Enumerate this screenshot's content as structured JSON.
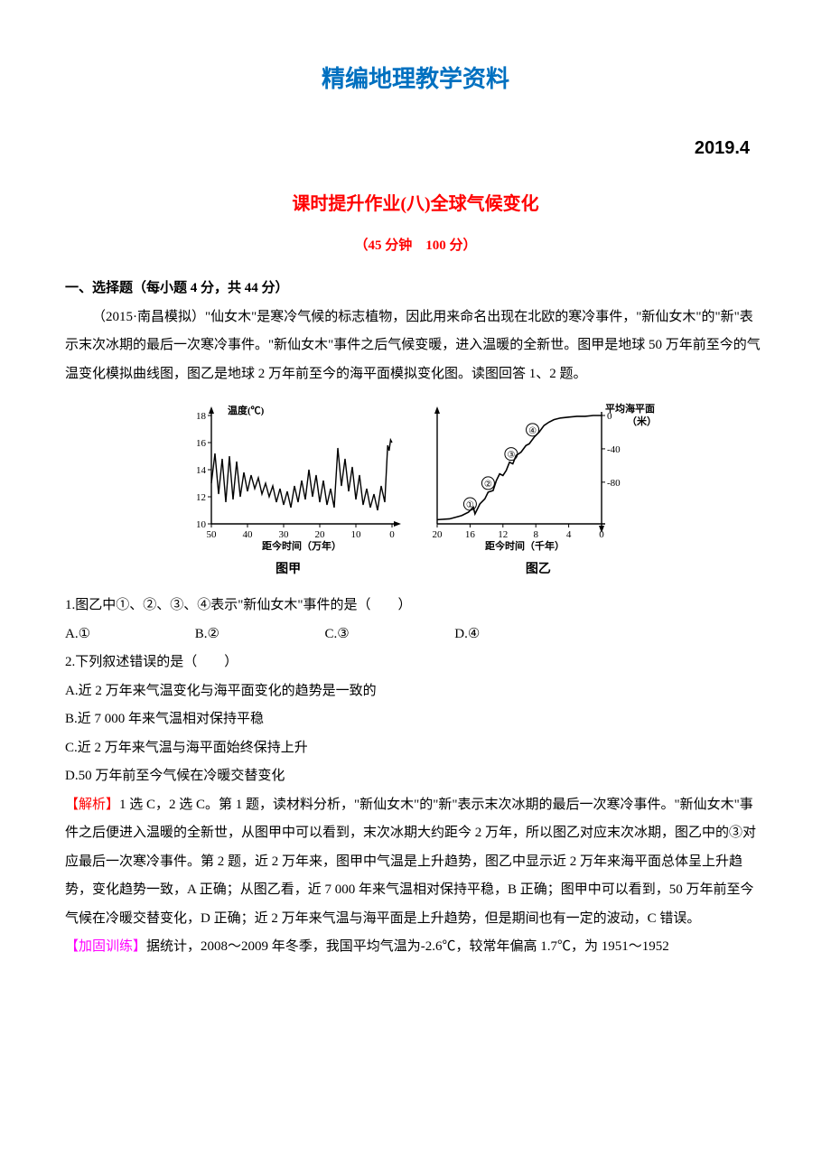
{
  "header": {
    "main_title": "精编地理教学资料",
    "date": "2019.4",
    "sub_title": "课时提升作业(八)全球气候变化",
    "time_line": "（45 分钟　100 分）"
  },
  "section1": {
    "heading": "一、选择题（每小题 4 分，共 44 分）",
    "intro": "（2015·南昌模拟）\"仙女木\"是寒冷气候的标志植物，因此用来命名出现在北欧的寒冷事件，\"新仙女木\"的\"新\"表示末次冰期的最后一次寒冷事件。\"新仙女木\"事件之后气候变暖，进入温暖的全新世。图甲是地球 50 万年前至今的气温变化模拟曲线图，图乙是地球 2 万年前至今的海平面模拟变化图。读图回答 1、2 题。"
  },
  "chart_jia": {
    "caption": "图甲",
    "y_label": "温度(℃)",
    "x_label": "距今时间（万年）",
    "x_ticks": [
      50,
      40,
      30,
      20,
      10,
      0
    ],
    "y_ticks": [
      10,
      12,
      14,
      16,
      18
    ],
    "xlim": [
      50,
      0
    ],
    "ylim": [
      10,
      18
    ],
    "axis_color": "#000000",
    "line_color": "#000000",
    "line_width": 1.4,
    "background": "#ffffff",
    "font_size": 11,
    "data_points": [
      [
        50,
        13.0
      ],
      [
        49,
        15.2
      ],
      [
        48,
        12.2
      ],
      [
        47,
        14.8
      ],
      [
        46,
        11.6
      ],
      [
        45,
        15.0
      ],
      [
        44,
        11.8
      ],
      [
        43,
        14.6
      ],
      [
        42,
        12.0
      ],
      [
        41,
        13.8
      ],
      [
        40,
        12.4
      ],
      [
        39,
        13.6
      ],
      [
        38,
        12.6
      ],
      [
        37,
        13.4
      ],
      [
        36,
        12.2
      ],
      [
        35,
        13.0
      ],
      [
        34,
        12.0
      ],
      [
        33,
        12.8
      ],
      [
        32,
        11.6
      ],
      [
        31,
        12.6
      ],
      [
        30,
        11.4
      ],
      [
        29,
        12.4
      ],
      [
        28,
        11.2
      ],
      [
        27,
        12.8
      ],
      [
        26,
        11.6
      ],
      [
        25,
        13.2
      ],
      [
        24,
        11.8
      ],
      [
        23,
        14.0
      ],
      [
        22,
        12.0
      ],
      [
        21,
        13.6
      ],
      [
        20,
        11.6
      ],
      [
        19,
        13.2
      ],
      [
        18,
        11.4
      ],
      [
        17,
        12.6
      ],
      [
        16,
        11.2
      ],
      [
        15,
        15.6
      ],
      [
        14,
        12.8
      ],
      [
        13,
        14.8
      ],
      [
        12,
        12.4
      ],
      [
        11,
        14.2
      ],
      [
        10,
        11.8
      ],
      [
        9,
        13.6
      ],
      [
        8,
        11.4
      ],
      [
        7,
        12.6
      ],
      [
        6,
        11.2
      ],
      [
        5,
        12.2
      ],
      [
        4,
        11.0
      ],
      [
        3,
        12.8
      ],
      [
        2,
        11.6
      ],
      [
        1.2,
        15.8
      ],
      [
        0.8,
        15.4
      ],
      [
        0.4,
        16.2
      ],
      [
        0,
        16.0
      ]
    ]
  },
  "chart_yi": {
    "caption": "图乙",
    "left_y_label": "",
    "right_y_label": "平均海平面（米）",
    "x_label": "距今时间（千年）",
    "x_ticks": [
      20,
      16,
      12,
      8,
      4,
      0
    ],
    "right_y_ticks": [
      0,
      -40,
      -80
    ],
    "xlim": [
      20,
      0
    ],
    "ylim_right": [
      -130,
      0
    ],
    "axis_color": "#000000",
    "line_color": "#000000",
    "line_width": 1.6,
    "background": "#ffffff",
    "font_size": 11,
    "data_points": [
      [
        20,
        -125
      ],
      [
        18.5,
        -124
      ],
      [
        17,
        -120
      ],
      [
        16.2,
        -116
      ],
      [
        15.6,
        -110
      ],
      [
        15.4,
        -118
      ],
      [
        14.8,
        -106
      ],
      [
        14.2,
        -100
      ],
      [
        13.8,
        -92
      ],
      [
        13.2,
        -90
      ],
      [
        12.8,
        -78
      ],
      [
        12.4,
        -70
      ],
      [
        12.0,
        -72
      ],
      [
        11.6,
        -66
      ],
      [
        11.2,
        -56
      ],
      [
        10.8,
        -58
      ],
      [
        10.4,
        -48
      ],
      [
        9.8,
        -44
      ],
      [
        9.2,
        -36
      ],
      [
        8.8,
        -34
      ],
      [
        8.2,
        -26
      ],
      [
        7.6,
        -20
      ],
      [
        7.0,
        -12
      ],
      [
        6.4,
        -8
      ],
      [
        5.8,
        -5
      ],
      [
        5.0,
        -3
      ],
      [
        4.0,
        -2
      ],
      [
        3.0,
        -1
      ],
      [
        2.0,
        -1
      ],
      [
        1.0,
        0
      ],
      [
        0,
        0
      ]
    ],
    "markers": [
      {
        "num": "①",
        "x": 16.0,
        "y": -117
      },
      {
        "num": "②",
        "x": 13.8,
        "y": -92
      },
      {
        "num": "③",
        "x": 11.0,
        "y": -57
      },
      {
        "num": "④",
        "x": 8.4,
        "y": -28
      }
    ]
  },
  "q1": {
    "stem": "1.图乙中①、②、③、④表示\"新仙女木\"事件的是（　　）",
    "A": "A.①",
    "B": "B.②",
    "C": "C.③",
    "D": "D.④"
  },
  "q2": {
    "stem": "2.下列叙述错误的是（　　）",
    "A": "A.近 2 万年来气温变化与海平面变化的趋势是一致的",
    "B": "B.近 7 000 年来气温相对保持平稳",
    "C": "C.近 2 万年来气温与海平面始终保持上升",
    "D": "D.50 万年前至今气候在冷暖交替变化"
  },
  "analysis": {
    "label": "【解析】",
    "body": "1 选 C，2 选 C。第 1 题，读材料分析，\"新仙女木\"的\"新\"表示末次冰期的最后一次寒冷事件。\"新仙女木\"事件之后便进入温暖的全新世，从图甲中可以看到，末次冰期大约距今 2 万年，所以图乙对应末次冰期，图乙中的③对应最后一次寒冷事件。第 2 题，近 2 万年来，图甲中气温是上升趋势，图乙中显示近 2 万年来海平面总体呈上升趋势，变化趋势一致，A 正确；从图乙看，近 7 000 年来气温相对保持平稳，B 正确；图甲中可以看到，50 万年前至今气候在冷暖交替变化，D 正确；近 2 万年来气温与海平面是上升趋势，但是期间也有一定的波动，C 错误。"
  },
  "reinforce": {
    "label": "【加固训练】",
    "body": "据统计，2008～2009 年冬季，我国平均气温为-2.6℃，较常年偏高 1.7℃，为 1951～1952"
  },
  "colors": {
    "title_blue": "#0070c0",
    "red": "#ff0000",
    "magenta": "#ff00ff",
    "text": "#000000",
    "background": "#ffffff"
  }
}
